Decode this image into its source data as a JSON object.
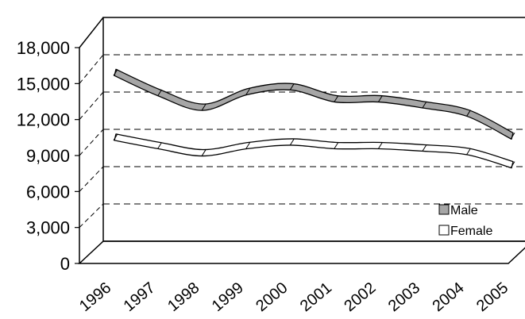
{
  "chart_data": {
    "type": "line",
    "style": "3d-ribbon",
    "categories": [
      "1996",
      "1997",
      "1998",
      "1999",
      "2000",
      "2001",
      "2002",
      "2003",
      "2004",
      "2005"
    ],
    "series": [
      {
        "name": "Male",
        "color": "#a6a6a6",
        "values": [
          15200,
          13500,
          12300,
          13600,
          14000,
          13000,
          13000,
          12500,
          11800,
          9900
        ]
      },
      {
        "name": "Female",
        "color": "#ffffff",
        "values": [
          9800,
          9100,
          8500,
          9100,
          9400,
          9100,
          9100,
          8900,
          8600,
          7500
        ]
      }
    ],
    "y_ticks": [
      "0",
      "3,000",
      "6,000",
      "9,000",
      "12,000",
      "15,000",
      "18,000"
    ],
    "ylim": [
      0,
      18000
    ],
    "grid": "horizontal-dashed",
    "legend": "bottom-right",
    "title": "",
    "xlabel": "",
    "ylabel": ""
  }
}
